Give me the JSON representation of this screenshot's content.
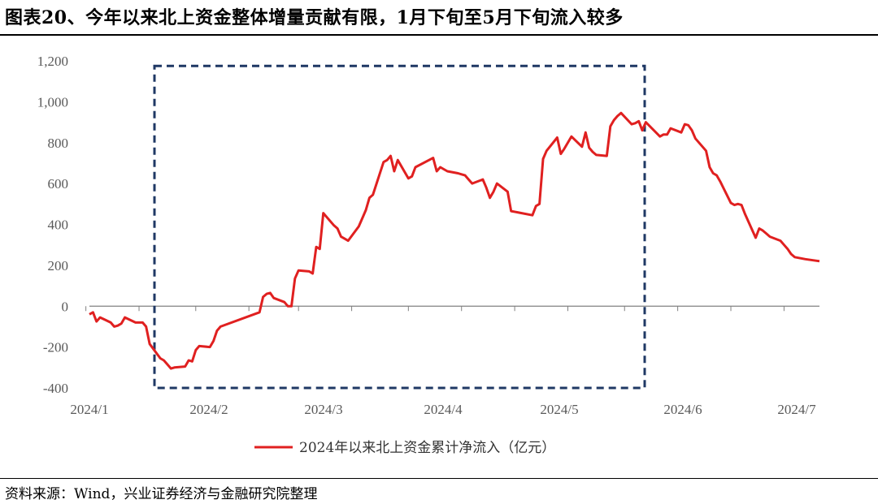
{
  "figure": {
    "title": "图表20、今年以来北上资金整体增量贡献有限，1月下旬至5月下旬流入较多",
    "source": "资料来源：Wind，兴业证券经济与金融研究院整理"
  },
  "colors": {
    "line": "#e02020",
    "box": "#1f3864",
    "axis": "#808080",
    "text": "#595959"
  },
  "chart_data": {
    "type": "line",
    "title": "",
    "xlabel": "",
    "ylabel": "",
    "x_ticks": [
      "2024/1",
      "2024/2",
      "2024/3",
      "2024/4",
      "2024/5",
      "2024/6",
      "2024/7"
    ],
    "y_ticks": [
      -400,
      -200,
      0,
      200,
      400,
      600,
      800,
      1000,
      1200
    ],
    "ylim": [
      -400,
      1200
    ],
    "xlim": [
      "2024-01-02",
      "2024-07-26"
    ],
    "grid": false,
    "legend_position": "bottom-center",
    "series": [
      {
        "name": "2024年以来北上资金累计净流入（亿元）",
        "points": [
          [
            "2024-01-02",
            -40
          ],
          [
            "2024-01-03",
            -30
          ],
          [
            "2024-01-04",
            -75
          ],
          [
            "2024-01-05",
            -55
          ],
          [
            "2024-01-08",
            -80
          ],
          [
            "2024-01-09",
            -100
          ],
          [
            "2024-01-10",
            -95
          ],
          [
            "2024-01-11",
            -85
          ],
          [
            "2024-01-12",
            -55
          ],
          [
            "2024-01-15",
            -80
          ],
          [
            "2024-01-16",
            -80
          ],
          [
            "2024-01-17",
            -80
          ],
          [
            "2024-01-18",
            -100
          ],
          [
            "2024-01-19",
            -185
          ],
          [
            "2024-01-22",
            -255
          ],
          [
            "2024-01-23",
            -265
          ],
          [
            "2024-01-24",
            -285
          ],
          [
            "2024-01-25",
            -305
          ],
          [
            "2024-01-26",
            -300
          ],
          [
            "2024-01-29",
            -295
          ],
          [
            "2024-01-30",
            -265
          ],
          [
            "2024-01-31",
            -270
          ],
          [
            "2024-02-01",
            -215
          ],
          [
            "2024-02-02",
            -195
          ],
          [
            "2024-02-05",
            -200
          ],
          [
            "2024-02-06",
            -170
          ],
          [
            "2024-02-07",
            -120
          ],
          [
            "2024-02-08",
            -100
          ],
          [
            "2024-02-19",
            -30
          ],
          [
            "2024-02-20",
            45
          ],
          [
            "2024-02-21",
            60
          ],
          [
            "2024-02-22",
            65
          ],
          [
            "2024-02-23",
            40
          ],
          [
            "2024-02-26",
            20
          ],
          [
            "2024-02-27",
            0
          ],
          [
            "2024-02-28",
            0
          ],
          [
            "2024-02-29",
            135
          ],
          [
            "2024-03-01",
            175
          ],
          [
            "2024-03-04",
            170
          ],
          [
            "2024-03-05",
            160
          ],
          [
            "2024-03-06",
            290
          ],
          [
            "2024-03-07",
            280
          ],
          [
            "2024-03-08",
            455
          ],
          [
            "2024-03-11",
            395
          ],
          [
            "2024-03-12",
            380
          ],
          [
            "2024-03-13",
            340
          ],
          [
            "2024-03-14",
            330
          ],
          [
            "2024-03-15",
            320
          ],
          [
            "2024-03-18",
            390
          ],
          [
            "2024-03-19",
            430
          ],
          [
            "2024-03-20",
            470
          ],
          [
            "2024-03-21",
            530
          ],
          [
            "2024-03-22",
            545
          ],
          [
            "2024-03-25",
            705
          ],
          [
            "2024-03-26",
            715
          ],
          [
            "2024-03-27",
            735
          ],
          [
            "2024-03-28",
            660
          ],
          [
            "2024-03-29",
            715
          ],
          [
            "2024-04-01",
            625
          ],
          [
            "2024-04-02",
            635
          ],
          [
            "2024-04-03",
            680
          ],
          [
            "2024-04-08",
            725
          ],
          [
            "2024-04-09",
            660
          ],
          [
            "2024-04-10",
            680
          ],
          [
            "2024-04-11",
            670
          ],
          [
            "2024-04-12",
            660
          ],
          [
            "2024-04-15",
            650
          ],
          [
            "2024-04-16",
            645
          ],
          [
            "2024-04-17",
            640
          ],
          [
            "2024-04-18",
            620
          ],
          [
            "2024-04-19",
            600
          ],
          [
            "2024-04-22",
            620
          ],
          [
            "2024-04-23",
            580
          ],
          [
            "2024-04-24",
            530
          ],
          [
            "2024-04-25",
            560
          ],
          [
            "2024-04-26",
            600
          ],
          [
            "2024-04-29",
            560
          ],
          [
            "2024-04-30",
            465
          ],
          [
            "2024-05-06",
            445
          ],
          [
            "2024-05-07",
            490
          ],
          [
            "2024-05-08",
            500
          ],
          [
            "2024-05-09",
            720
          ],
          [
            "2024-05-10",
            760
          ],
          [
            "2024-05-13",
            825
          ],
          [
            "2024-05-14",
            745
          ],
          [
            "2024-05-15",
            770
          ],
          [
            "2024-05-16",
            800
          ],
          [
            "2024-05-17",
            830
          ],
          [
            "2024-05-20",
            780
          ],
          [
            "2024-05-21",
            850
          ],
          [
            "2024-05-22",
            775
          ],
          [
            "2024-05-23",
            755
          ],
          [
            "2024-05-24",
            740
          ],
          [
            "2024-05-27",
            735
          ],
          [
            "2024-05-28",
            880
          ],
          [
            "2024-05-29",
            910
          ],
          [
            "2024-05-30",
            930
          ],
          [
            "2024-05-31",
            945
          ],
          [
            "2024-06-03",
            890
          ],
          [
            "2024-06-04",
            895
          ],
          [
            "2024-06-05",
            905
          ],
          [
            "2024-06-06",
            860
          ],
          [
            "2024-06-07",
            900
          ],
          [
            "2024-06-11",
            830
          ],
          [
            "2024-06-12",
            840
          ],
          [
            "2024-06-13",
            840
          ],
          [
            "2024-06-14",
            870
          ],
          [
            "2024-06-17",
            850
          ],
          [
            "2024-06-18",
            890
          ],
          [
            "2024-06-19",
            885
          ],
          [
            "2024-06-20",
            860
          ],
          [
            "2024-06-21",
            820
          ],
          [
            "2024-06-24",
            760
          ],
          [
            "2024-06-25",
            680
          ],
          [
            "2024-06-26",
            650
          ],
          [
            "2024-06-27",
            640
          ],
          [
            "2024-06-28",
            610
          ],
          [
            "2024-07-01",
            505
          ],
          [
            "2024-07-02",
            495
          ],
          [
            "2024-07-03",
            500
          ],
          [
            "2024-07-04",
            495
          ],
          [
            "2024-07-05",
            450
          ],
          [
            "2024-07-08",
            335
          ],
          [
            "2024-07-09",
            380
          ],
          [
            "2024-07-10",
            370
          ],
          [
            "2024-07-11",
            355
          ],
          [
            "2024-07-12",
            340
          ],
          [
            "2024-07-15",
            320
          ],
          [
            "2024-07-16",
            300
          ],
          [
            "2024-07-17",
            280
          ],
          [
            "2024-07-18",
            255
          ],
          [
            "2024-07-19",
            240
          ],
          [
            "2024-07-22",
            230
          ],
          [
            "2024-07-26",
            220
          ]
        ]
      }
    ],
    "annotations": [
      {
        "type": "dashed-box",
        "x_from": "2024-01-22",
        "x_to": "2024-05-31",
        "y_from": -400,
        "y_to": 1175
      }
    ]
  }
}
